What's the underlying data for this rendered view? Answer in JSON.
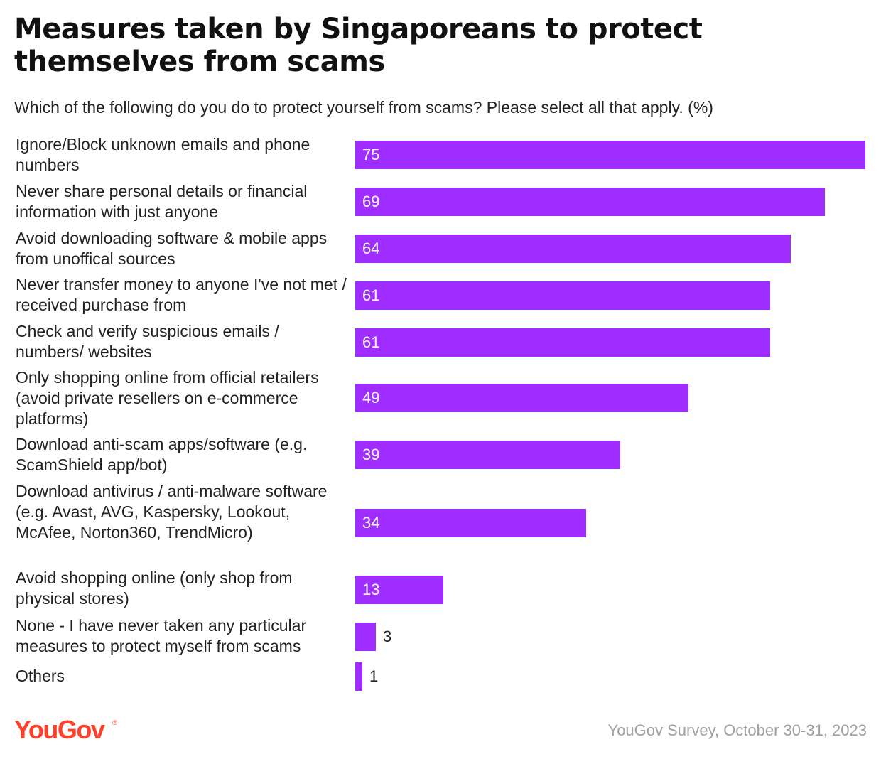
{
  "title": "Measures taken by Singaporeans to protect themselves from scams",
  "subtitle": "Which of the following do you do to protect yourself from scams? Please select all that apply. (%)",
  "brand": "YouGov",
  "brand_mark": "®",
  "source": "YouGov Survey, October 30-31, 2023",
  "colors": {
    "bar": "#a02dff",
    "logo": "#ff412c"
  },
  "chart_data": {
    "type": "bar",
    "orientation": "horizontal",
    "title": "Measures taken by Singaporeans to protect themselves from scams",
    "subtitle": "Which of the following do you do to protect yourself from scams? Please select all that apply. (%)",
    "xlabel": "",
    "ylabel": "",
    "xlim": [
      0,
      75
    ],
    "grid": false,
    "categories": [
      "Ignore/Block unknown emails and phone numbers",
      "Never share personal details or financial information with just anyone",
      "Avoid downloading software & mobile apps from unoffical sources",
      "Never transfer money to anyone I've not met / received purchase from",
      "Check and verify suspicious emails / numbers/ websites",
      "Only shopping online from official retailers (avoid private resellers on e-commerce platforms)",
      "Download anti-scam apps/software (e.g. ScamShield app/bot)",
      "Download antivirus / anti-malware software (e.g. Avast, AVG, Kaspersky, Lookout, McAfee, Norton360, TrendMicro)",
      "Avoid shopping online (only shop from physical stores)",
      "None - I have never taken any particular measures to protect myself from scams",
      "Others"
    ],
    "values": [
      75,
      69,
      64,
      61,
      61,
      49,
      39,
      34,
      13,
      3,
      1
    ]
  }
}
